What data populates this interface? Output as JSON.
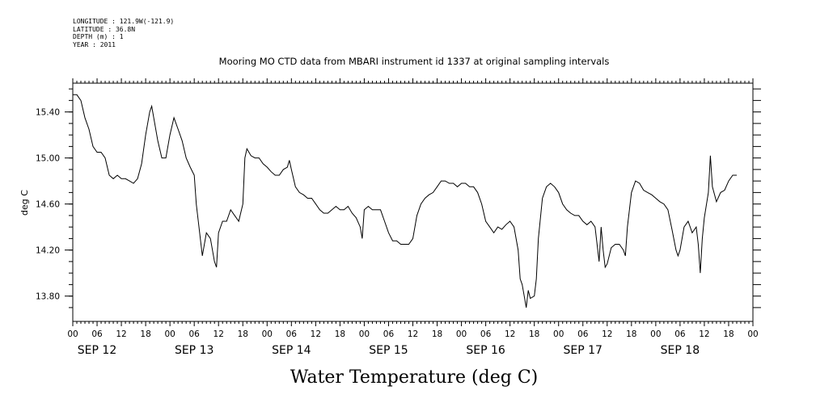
{
  "header": {
    "longitude": "LONGITUDE : 121.9W(-121.9)",
    "latitude": "LATITUDE : 36.8N",
    "depth": "DEPTH (m) : 1",
    "year": "YEAR : 2011"
  },
  "chart_data": {
    "type": "line",
    "title": "Mooring MO CTD data from MBARI instrument id 1337 at original sampling intervals",
    "xlabel": "Water Temperature (deg C)",
    "ylabel": "deg C",
    "ylim": [
      13.58,
      15.65
    ],
    "xlim": [
      0,
      168
    ],
    "x_unit": "hours since SEP 12 00:00 (2011)",
    "yticks": [
      "13.80",
      "14.20",
      "14.60",
      "15.00",
      "15.40"
    ],
    "ytick_values": [
      13.8,
      14.2,
      14.6,
      15.0,
      15.4
    ],
    "xtick_labels": [
      "00",
      "06",
      "12",
      "18",
      "00",
      "06",
      "12",
      "18",
      "00",
      "06",
      "12",
      "18",
      "00",
      "06",
      "12",
      "18",
      "00",
      "06",
      "12",
      "18",
      "00",
      "06",
      "12",
      "18",
      "00",
      "06",
      "12",
      "18",
      "00"
    ],
    "day_labels": [
      "SEP 12",
      "SEP 13",
      "SEP 14",
      "SEP 15",
      "SEP 16",
      "SEP 17",
      "SEP 18"
    ],
    "grid": false,
    "series": [
      {
        "color": "#000000",
        "points": [
          [
            0,
            15.55
          ],
          [
            1,
            15.55
          ],
          [
            2,
            15.5
          ],
          [
            3,
            15.35
          ],
          [
            4,
            15.25
          ],
          [
            5,
            15.1
          ],
          [
            6,
            15.05
          ],
          [
            7,
            15.05
          ],
          [
            8,
            15.0
          ],
          [
            9,
            14.85
          ],
          [
            10,
            14.82
          ],
          [
            11,
            14.85
          ],
          [
            12,
            14.82
          ],
          [
            13,
            14.82
          ],
          [
            14,
            14.8
          ],
          [
            15,
            14.78
          ],
          [
            16,
            14.82
          ],
          [
            17,
            14.95
          ],
          [
            18,
            15.2
          ],
          [
            19,
            15.4
          ],
          [
            19.5,
            15.45
          ],
          [
            20,
            15.35
          ],
          [
            21,
            15.15
          ],
          [
            22,
            15.0
          ],
          [
            23,
            15.0
          ],
          [
            24,
            15.2
          ],
          [
            25,
            15.35
          ],
          [
            26,
            15.25
          ],
          [
            27,
            15.15
          ],
          [
            28,
            15.0
          ],
          [
            29,
            14.92
          ],
          [
            30,
            14.85
          ],
          [
            30.5,
            14.6
          ],
          [
            31,
            14.45
          ],
          [
            31.5,
            14.3
          ],
          [
            32,
            14.15
          ],
          [
            33,
            14.35
          ],
          [
            34,
            14.3
          ],
          [
            35,
            14.1
          ],
          [
            35.5,
            14.05
          ],
          [
            36,
            14.35
          ],
          [
            37,
            14.45
          ],
          [
            38,
            14.45
          ],
          [
            39,
            14.55
          ],
          [
            40,
            14.5
          ],
          [
            41,
            14.45
          ],
          [
            42,
            14.6
          ],
          [
            42.5,
            15.0
          ],
          [
            43,
            15.08
          ],
          [
            44,
            15.02
          ],
          [
            45,
            15.0
          ],
          [
            46,
            15.0
          ],
          [
            47,
            14.95
          ],
          [
            48,
            14.92
          ],
          [
            49,
            14.88
          ],
          [
            50,
            14.85
          ],
          [
            51,
            14.85
          ],
          [
            52,
            14.9
          ],
          [
            53,
            14.92
          ],
          [
            53.5,
            14.98
          ],
          [
            54,
            14.9
          ],
          [
            55,
            14.75
          ],
          [
            56,
            14.7
          ],
          [
            57,
            14.68
          ],
          [
            58,
            14.65
          ],
          [
            59,
            14.65
          ],
          [
            60,
            14.6
          ],
          [
            61,
            14.55
          ],
          [
            62,
            14.52
          ],
          [
            63,
            14.52
          ],
          [
            64,
            14.55
          ],
          [
            65,
            14.58
          ],
          [
            66,
            14.55
          ],
          [
            67,
            14.55
          ],
          [
            68,
            14.58
          ],
          [
            69,
            14.52
          ],
          [
            70,
            14.48
          ],
          [
            71,
            14.4
          ],
          [
            71.5,
            14.3
          ],
          [
            72,
            14.55
          ],
          [
            73,
            14.58
          ],
          [
            74,
            14.55
          ],
          [
            75,
            14.55
          ],
          [
            76,
            14.55
          ],
          [
            77,
            14.45
          ],
          [
            78,
            14.35
          ],
          [
            79,
            14.28
          ],
          [
            80,
            14.28
          ],
          [
            81,
            14.25
          ],
          [
            82,
            14.25
          ],
          [
            83,
            14.25
          ],
          [
            84,
            14.3
          ],
          [
            85,
            14.5
          ],
          [
            86,
            14.6
          ],
          [
            87,
            14.65
          ],
          [
            88,
            14.68
          ],
          [
            89,
            14.7
          ],
          [
            90,
            14.75
          ],
          [
            91,
            14.8
          ],
          [
            92,
            14.8
          ],
          [
            93,
            14.78
          ],
          [
            94,
            14.78
          ],
          [
            95,
            14.75
          ],
          [
            96,
            14.78
          ],
          [
            97,
            14.78
          ],
          [
            98,
            14.75
          ],
          [
            99,
            14.75
          ],
          [
            100,
            14.7
          ],
          [
            101,
            14.6
          ],
          [
            102,
            14.45
          ],
          [
            103,
            14.4
          ],
          [
            104,
            14.35
          ],
          [
            105,
            14.4
          ],
          [
            106,
            14.38
          ],
          [
            107,
            14.42
          ],
          [
            108,
            14.45
          ],
          [
            109,
            14.4
          ],
          [
            110,
            14.2
          ],
          [
            110.5,
            13.95
          ],
          [
            111,
            13.9
          ],
          [
            111.5,
            13.8
          ],
          [
            112,
            13.7
          ],
          [
            112.5,
            13.85
          ],
          [
            113,
            13.78
          ],
          [
            114,
            13.8
          ],
          [
            114.5,
            13.95
          ],
          [
            115,
            14.3
          ],
          [
            116,
            14.65
          ],
          [
            117,
            14.75
          ],
          [
            118,
            14.78
          ],
          [
            119,
            14.75
          ],
          [
            120,
            14.7
          ],
          [
            121,
            14.6
          ],
          [
            122,
            14.55
          ],
          [
            123,
            14.52
          ],
          [
            124,
            14.5
          ],
          [
            125,
            14.5
          ],
          [
            126,
            14.45
          ],
          [
            127,
            14.42
          ],
          [
            128,
            14.45
          ],
          [
            129,
            14.4
          ],
          [
            130,
            14.1
          ],
          [
            130.5,
            14.4
          ],
          [
            131,
            14.2
          ],
          [
            131.5,
            14.05
          ],
          [
            132,
            14.08
          ],
          [
            133,
            14.22
          ],
          [
            134,
            14.25
          ],
          [
            135,
            14.25
          ],
          [
            136,
            14.2
          ],
          [
            136.5,
            14.15
          ],
          [
            137,
            14.4
          ],
          [
            138,
            14.7
          ],
          [
            139,
            14.8
          ],
          [
            140,
            14.78
          ],
          [
            141,
            14.72
          ],
          [
            142,
            14.7
          ],
          [
            143,
            14.68
          ],
          [
            144,
            14.65
          ],
          [
            145,
            14.62
          ],
          [
            146,
            14.6
          ],
          [
            147,
            14.55
          ],
          [
            148,
            14.38
          ],
          [
            149,
            14.2
          ],
          [
            149.5,
            14.15
          ],
          [
            150,
            14.2
          ],
          [
            151,
            14.4
          ],
          [
            152,
            14.45
          ],
          [
            153,
            14.35
          ],
          [
            154,
            14.4
          ],
          [
            154.5,
            14.25
          ],
          [
            155,
            14.0
          ],
          [
            155.5,
            14.3
          ],
          [
            156,
            14.48
          ],
          [
            157,
            14.7
          ],
          [
            157.5,
            15.02
          ],
          [
            158,
            14.75
          ],
          [
            159,
            14.62
          ],
          [
            160,
            14.7
          ],
          [
            161,
            14.72
          ],
          [
            162,
            14.8
          ],
          [
            163,
            14.85
          ],
          [
            164,
            14.85
          ]
        ]
      }
    ]
  }
}
